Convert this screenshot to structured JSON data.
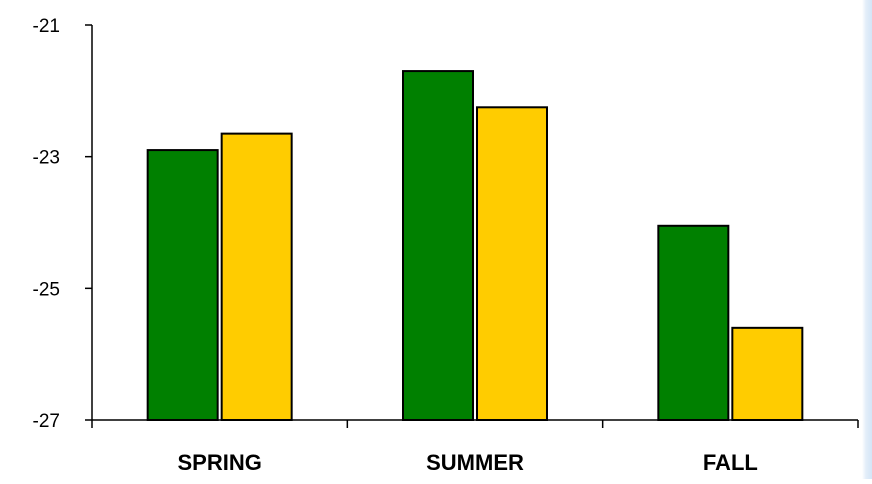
{
  "chart_data": {
    "type": "bar",
    "categories": [
      "SPRING",
      "SUMMER",
      "FALL"
    ],
    "series": [
      {
        "color": "#008000",
        "values": [
          -22.9,
          -21.7,
          -24.05
        ]
      },
      {
        "color": "#FFCC00",
        "values": [
          -22.65,
          -22.25,
          -25.6
        ]
      }
    ],
    "ylim": [
      -27,
      -21
    ],
    "yticks": [
      -21,
      -23,
      -25,
      -27
    ],
    "ytick_labels": [
      "-21",
      "-23",
      "-25",
      "-27"
    ],
    "title": "",
    "xlabel": "",
    "ylabel": "",
    "grid": false,
    "legend": "none"
  }
}
